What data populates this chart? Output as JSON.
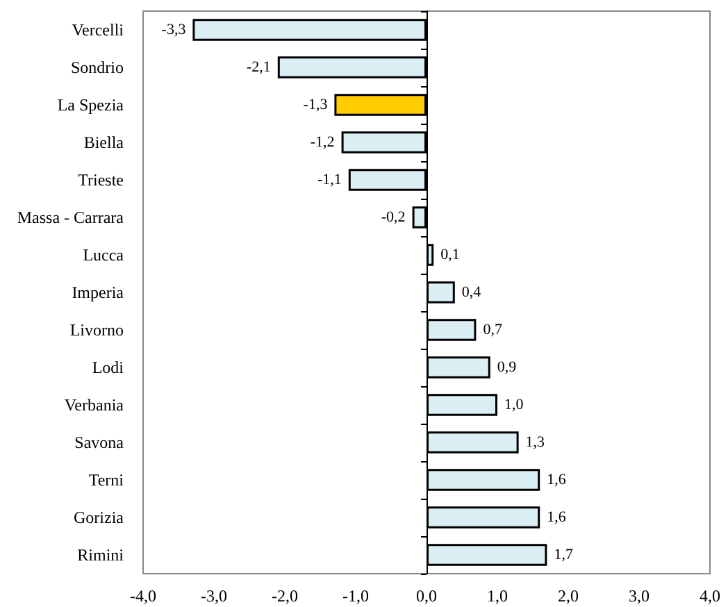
{
  "chart_data": {
    "type": "bar",
    "orientation": "horizontal",
    "categories": [
      "Vercelli",
      "Sondrio",
      "La Spezia",
      "Biella",
      "Trieste",
      "Massa - Carrara",
      "Lucca",
      "Imperia",
      "Livorno",
      "Lodi",
      "Verbania",
      "Savona",
      "Terni",
      "Gorizia",
      "Rimini"
    ],
    "values": [
      -3.3,
      -2.1,
      -1.3,
      -1.2,
      -1.1,
      -0.2,
      0.1,
      0.4,
      0.7,
      0.9,
      1.0,
      1.3,
      1.6,
      1.6,
      1.7
    ],
    "colors": [
      "#daeef3",
      "#daeef3",
      "#ffcc00",
      "#daeef3",
      "#daeef3",
      "#daeef3",
      "#daeef3",
      "#daeef3",
      "#daeef3",
      "#daeef3",
      "#daeef3",
      "#daeef3",
      "#daeef3",
      "#daeef3",
      "#daeef3"
    ],
    "value_labels": [
      "-3,3",
      "-2,1",
      "-1,3",
      "-1,2",
      "-1,1",
      "-0,2",
      "0,1",
      "0,4",
      "0,7",
      "0,9",
      "1,0",
      "1,3",
      "1,6",
      "1,6",
      "1,7"
    ],
    "xlim": [
      -4,
      4
    ],
    "xticks": [
      {
        "value": -4,
        "label": "-4,0"
      },
      {
        "value": -3,
        "label": "-3,0"
      },
      {
        "value": -2,
        "label": "-2,0"
      },
      {
        "value": -1,
        "label": "-1,0"
      },
      {
        "value": 0,
        "label": "0,0"
      },
      {
        "value": 1,
        "label": "1,0"
      },
      {
        "value": 2,
        "label": "2,0"
      },
      {
        "value": 3,
        "label": "3,0"
      },
      {
        "value": 4,
        "label": "4,0"
      }
    ]
  }
}
